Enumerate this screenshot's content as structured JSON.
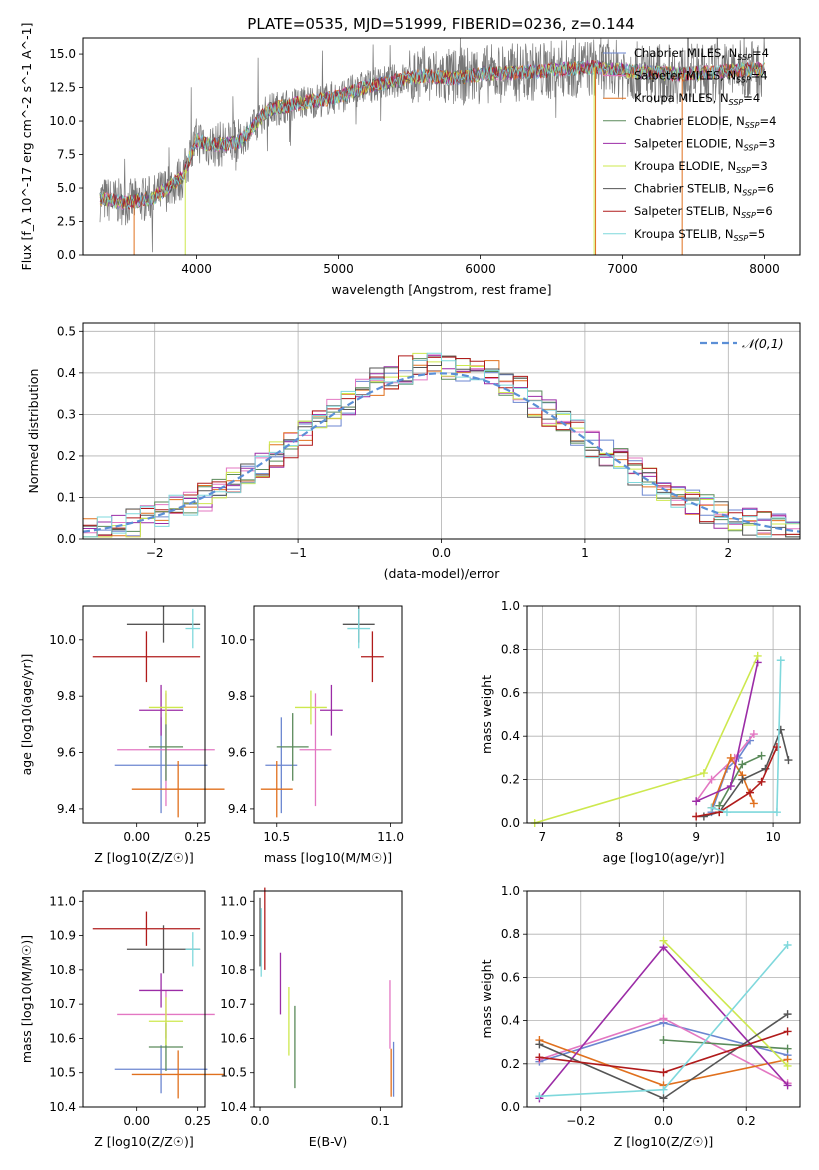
{
  "figure_title": "PLATE=0535, MJD=51999, FIBERID=0236, z=0.144",
  "colors": {
    "Chabrier MILES": "#6b86d0",
    "Salpeter MILES": "#e377c2",
    "Kroupa MILES": "#e0701e",
    "Chabrier ELODIE": "#5a8a5a",
    "Salpeter ELODIE": "#9b2ca6",
    "Kroupa ELODIE": "#cde84e",
    "Chabrier STELIB": "#555555",
    "Salpeter STELIB": "#b01b1b",
    "Kroupa STELIB": "#7fd8dc",
    "normal": "#5b8fd6"
  },
  "chart_data": [
    {
      "type": "line",
      "id": "spectrum",
      "title": "PLATE=0535, MJD=51999, FIBERID=0236, z=0.144",
      "xlabel": "wavelength [Angstrom, rest frame]",
      "ylabel": "Flux [f_λ 10^-17 erg cm^-2 s^-1 A^-1]",
      "xlim": [
        3200,
        8250
      ],
      "ylim": [
        0,
        16.2
      ],
      "xticks": [
        4000,
        5000,
        6000,
        7000,
        8000
      ],
      "yticks": [
        0.0,
        2.5,
        5.0,
        7.5,
        10.0,
        12.5,
        15.0
      ],
      "legend_position": "top-right",
      "data_envelope": {
        "x": [
          3320,
          3500,
          3700,
          3900,
          4000,
          4100,
          4300,
          4500,
          4700,
          5000,
          5200,
          5400,
          5600,
          5800,
          6000,
          6200,
          6400,
          6600,
          6800,
          7000,
          7200,
          7400,
          7600,
          7800,
          8000
        ],
        "y": [
          4.2,
          3.9,
          4.3,
          5.8,
          8.6,
          8.2,
          8.4,
          10.8,
          11.3,
          11.8,
          12.6,
          13.0,
          13.4,
          13.2,
          13.5,
          13.6,
          13.7,
          13.9,
          14.0,
          13.8,
          13.6,
          13.5,
          13.6,
          13.8,
          13.9
        ]
      },
      "legend": [
        {
          "label": "Chabrier MILES, N",
          "sub": "SSP",
          "suffix": "=4"
        },
        {
          "label": "Salpeter MILES, N",
          "sub": "SSP",
          "suffix": "=4"
        },
        {
          "label": "Kroupa MILES, N",
          "sub": "SSP",
          "suffix": "=4"
        },
        {
          "label": "Chabrier ELODIE, N",
          "sub": "SSP",
          "suffix": "=4"
        },
        {
          "label": "Salpeter ELODIE, N",
          "sub": "SSP",
          "suffix": "=3"
        },
        {
          "label": "Kroupa ELODIE, N",
          "sub": "SSP",
          "suffix": "=3"
        },
        {
          "label": "Chabrier STELIB, N",
          "sub": "SSP",
          "suffix": "=6"
        },
        {
          "label": "Salpeter STELIB, N",
          "sub": "SSP",
          "suffix": "=6"
        },
        {
          "label": "Kroupa STELIB, N",
          "sub": "SSP",
          "suffix": "=5"
        }
      ]
    },
    {
      "type": "histogram",
      "id": "residuals",
      "xlabel": "(data-model)/error",
      "ylabel": "Normed distribution",
      "xlim": [
        -2.5,
        2.5
      ],
      "ylim": [
        0,
        0.52
      ],
      "xticks": [
        -2,
        -1,
        0,
        1,
        2
      ],
      "yticks": [
        0.0,
        0.1,
        0.2,
        0.3,
        0.4,
        0.5
      ],
      "bin_width": 0.1,
      "grid": true,
      "legend": "𝒩(0,1)",
      "legend_position": "top-right",
      "reference_curve": "standard normal"
    },
    {
      "type": "errorbar",
      "id": "age_vs_Z",
      "xlabel": "Z [log10(Z/Z☉)]",
      "ylabel": "age [log10(age/yr)]",
      "xlim": [
        -0.22,
        0.28
      ],
      "ylim": [
        9.35,
        10.12
      ],
      "xticks": [
        0.0,
        0.25
      ],
      "yticks": [
        9.4,
        9.6,
        9.8,
        10.0
      ],
      "points": [
        {
          "model": "Chabrier MILES",
          "x": 0.1,
          "xerr": 0.19,
          "y": 9.555,
          "yerr": 0.17
        },
        {
          "model": "Salpeter MILES",
          "x": 0.12,
          "xerr": 0.2,
          "y": 9.61,
          "yerr": 0.2
        },
        {
          "model": "Kroupa MILES",
          "x": 0.17,
          "xerr": 0.19,
          "y": 9.47,
          "yerr": 0.1
        },
        {
          "model": "Chabrier ELODIE",
          "x": 0.12,
          "xerr": 0.07,
          "y": 9.62,
          "yerr": 0.12
        },
        {
          "model": "Salpeter ELODIE",
          "x": 0.1,
          "xerr": 0.09,
          "y": 9.75,
          "yerr": 0.09
        },
        {
          "model": "Kroupa ELODIE",
          "x": 0.12,
          "xerr": 0.07,
          "y": 9.76,
          "yerr": 0.06
        },
        {
          "model": "Chabrier STELIB",
          "x": 0.11,
          "xerr": 0.15,
          "y": 10.055,
          "yerr": 0.065
        },
        {
          "model": "Salpeter STELIB",
          "x": 0.04,
          "xerr": 0.22,
          "y": 9.94,
          "yerr": 0.09
        },
        {
          "model": "Kroupa STELIB",
          "x": 0.23,
          "xerr": 0.03,
          "y": 10.04,
          "yerr": 0.07
        }
      ]
    },
    {
      "type": "errorbar",
      "id": "age_vs_mass",
      "xlabel": "mass [log10(M/M☉)]",
      "ylabel": "",
      "xlim": [
        10.4,
        11.05
      ],
      "ylim": [
        9.35,
        10.12
      ],
      "xticks": [
        10.5,
        11.0
      ],
      "yticks": [
        9.4,
        9.6,
        9.8,
        10.0
      ],
      "points": [
        {
          "model": "Chabrier MILES",
          "x": 10.52,
          "xerr": 0.07,
          "y": 9.555,
          "yerr": 0.17
        },
        {
          "model": "Salpeter MILES",
          "x": 10.67,
          "xerr": 0.07,
          "y": 9.61,
          "yerr": 0.2
        },
        {
          "model": "Kroupa MILES",
          "x": 10.5,
          "xerr": 0.07,
          "y": 9.47,
          "yerr": 0.1
        },
        {
          "model": "Chabrier ELODIE",
          "x": 10.57,
          "xerr": 0.07,
          "y": 9.62,
          "yerr": 0.12
        },
        {
          "model": "Salpeter ELODIE",
          "x": 10.74,
          "xerr": 0.05,
          "y": 9.75,
          "yerr": 0.09
        },
        {
          "model": "Kroupa ELODIE",
          "x": 10.65,
          "xerr": 0.07,
          "y": 9.76,
          "yerr": 0.06
        },
        {
          "model": "Chabrier STELIB",
          "x": 10.86,
          "xerr": 0.07,
          "y": 10.055,
          "yerr": 0.065
        },
        {
          "model": "Salpeter STELIB",
          "x": 10.92,
          "xerr": 0.05,
          "y": 9.94,
          "yerr": 0.09
        },
        {
          "model": "Kroupa STELIB",
          "x": 10.86,
          "xerr": 0.05,
          "y": 10.04,
          "yerr": 0.07
        }
      ]
    },
    {
      "type": "line",
      "id": "weight_vs_age",
      "xlabel": "age  [log10(age/yr)]",
      "ylabel": "mass weight",
      "xlim": [
        6.8,
        10.35
      ],
      "ylim": [
        0,
        1.0
      ],
      "xticks": [
        7,
        8,
        9,
        10
      ],
      "yticks": [
        0.0,
        0.2,
        0.4,
        0.6,
        0.8,
        1.0
      ],
      "grid": true,
      "series": [
        {
          "model": "Chabrier MILES",
          "x": [
            9.2,
            9.4,
            9.55,
            9.7
          ],
          "y": [
            0.05,
            0.25,
            0.3,
            0.38
          ]
        },
        {
          "model": "Salpeter MILES",
          "x": [
            9.0,
            9.2,
            9.5,
            9.75
          ],
          "y": [
            0.1,
            0.2,
            0.3,
            0.41
          ]
        },
        {
          "model": "Kroupa MILES",
          "x": [
            9.2,
            9.45,
            9.6,
            9.75
          ],
          "y": [
            0.07,
            0.3,
            0.22,
            0.09
          ]
        },
        {
          "model": "Chabrier ELODIE",
          "x": [
            9.3,
            9.6,
            9.85
          ],
          "y": [
            0.08,
            0.27,
            0.31
          ]
        },
        {
          "model": "Salpeter ELODIE",
          "x": [
            9.0,
            9.45,
            9.8
          ],
          "y": [
            0.1,
            0.17,
            0.74
          ]
        },
        {
          "model": "Kroupa ELODIE",
          "x": [
            6.9,
            9.1,
            9.8
          ],
          "y": [
            0.0,
            0.23,
            0.77
          ]
        },
        {
          "model": "Chabrier STELIB",
          "x": [
            9.1,
            9.3,
            9.6,
            9.9,
            10.1,
            10.2
          ],
          "y": [
            0.03,
            0.05,
            0.2,
            0.25,
            0.43,
            0.29
          ]
        },
        {
          "model": "Salpeter STELIB",
          "x": [
            9.0,
            9.3,
            9.7,
            9.85,
            10.05
          ],
          "y": [
            0.03,
            0.05,
            0.14,
            0.19,
            0.35
          ]
        },
        {
          "model": "Kroupa STELIB",
          "x": [
            9.2,
            9.4,
            10.05,
            10.1
          ],
          "y": [
            0.07,
            0.05,
            0.05,
            0.75
          ]
        }
      ]
    },
    {
      "type": "errorbar",
      "id": "mass_vs_Z",
      "xlabel": "Z [log10(Z/Z☉)]",
      "ylabel": "mass [log10(M/M☉)]",
      "xlim": [
        -0.22,
        0.28
      ],
      "ylim": [
        10.4,
        11.03
      ],
      "xticks": [
        0.0,
        0.25
      ],
      "yticks": [
        10.4,
        10.5,
        10.6,
        10.7,
        10.8,
        10.9,
        11.0
      ],
      "points": [
        {
          "model": "Chabrier MILES",
          "x": 0.1,
          "xerr": 0.19,
          "y": 10.51,
          "yerr": 0.07
        },
        {
          "model": "Salpeter MILES",
          "x": 0.12,
          "xerr": 0.2,
          "y": 10.67,
          "yerr": 0.07
        },
        {
          "model": "Kroupa MILES",
          "x": 0.17,
          "xerr": 0.19,
          "y": 10.495,
          "yerr": 0.07
        },
        {
          "model": "Chabrier ELODIE",
          "x": 0.12,
          "xerr": 0.07,
          "y": 10.575,
          "yerr": 0.07
        },
        {
          "model": "Salpeter ELODIE",
          "x": 0.1,
          "xerr": 0.09,
          "y": 10.74,
          "yerr": 0.05
        },
        {
          "model": "Kroupa ELODIE",
          "x": 0.12,
          "xerr": 0.07,
          "y": 10.65,
          "yerr": 0.07
        },
        {
          "model": "Chabrier STELIB",
          "x": 0.11,
          "xerr": 0.15,
          "y": 10.86,
          "yerr": 0.07
        },
        {
          "model": "Salpeter STELIB",
          "x": 0.04,
          "xerr": 0.22,
          "y": 10.92,
          "yerr": 0.05
        },
        {
          "model": "Kroupa STELIB",
          "x": 0.23,
          "xerr": 0.03,
          "y": 10.86,
          "yerr": 0.05
        }
      ]
    },
    {
      "type": "errorbar",
      "id": "mass_vs_ebv",
      "xlabel": "E(B-V)",
      "ylabel": "",
      "xlim": [
        -0.005,
        0.118
      ],
      "ylim": [
        10.4,
        11.03
      ],
      "xticks": [
        0.0,
        0.1
      ],
      "yticks": [
        10.4,
        10.5,
        10.6,
        10.7,
        10.8,
        10.9,
        11.0
      ],
      "points": [
        {
          "model": "Chabrier MILES",
          "x": 0.111,
          "xerr": 0,
          "y": 10.51,
          "yerr": 0.08
        },
        {
          "model": "Salpeter MILES",
          "x": 0.108,
          "xerr": 0,
          "y": 10.67,
          "yerr": 0.1
        },
        {
          "model": "Kroupa MILES",
          "x": 0.109,
          "xerr": 0,
          "y": 10.5,
          "yerr": 0.07
        },
        {
          "model": "Chabrier ELODIE",
          "x": 0.029,
          "xerr": 0,
          "y": 10.575,
          "yerr": 0.12
        },
        {
          "model": "Salpeter ELODIE",
          "x": 0.017,
          "xerr": 0,
          "y": 10.76,
          "yerr": 0.09
        },
        {
          "model": "Kroupa ELODIE",
          "x": 0.024,
          "xerr": 0,
          "y": 10.65,
          "yerr": 0.1
        },
        {
          "model": "Chabrier STELIB",
          "x": 0.0,
          "xerr": 0,
          "y": 10.91,
          "yerr": 0.1
        },
        {
          "model": "Salpeter STELIB",
          "x": 0.004,
          "xerr": 0,
          "y": 10.92,
          "yerr": 0.12
        },
        {
          "model": "Kroupa STELIB",
          "x": 0.001,
          "xerr": 0,
          "y": 10.88,
          "yerr": 0.1
        }
      ]
    },
    {
      "type": "line",
      "id": "weight_vs_Z",
      "xlabel": "Z [log10(Z/Z☉)]",
      "ylabel": "mass weight",
      "xlim": [
        -0.33,
        0.33
      ],
      "ylim": [
        0,
        1.0
      ],
      "xticks": [
        -0.2,
        0.0,
        0.2
      ],
      "yticks": [
        0.0,
        0.2,
        0.4,
        0.6,
        0.8,
        1.0
      ],
      "grid": true,
      "series": [
        {
          "model": "Chabrier MILES",
          "x": [
            -0.3,
            0.0,
            0.3
          ],
          "y": [
            0.21,
            0.39,
            0.24
          ]
        },
        {
          "model": "Salpeter MILES",
          "x": [
            -0.3,
            0.0,
            0.3
          ],
          "y": [
            0.22,
            0.41,
            0.11
          ]
        },
        {
          "model": "Kroupa MILES",
          "x": [
            -0.3,
            0.0,
            0.3
          ],
          "y": [
            0.31,
            0.1,
            0.22
          ]
        },
        {
          "model": "Chabrier ELODIE",
          "x": [
            0.0,
            0.3
          ],
          "y": [
            0.31,
            0.27
          ]
        },
        {
          "model": "Salpeter ELODIE",
          "x": [
            -0.3,
            0.0,
            0.3
          ],
          "y": [
            0.04,
            0.74,
            0.1
          ]
        },
        {
          "model": "Kroupa ELODIE",
          "x": [
            0.0,
            0.3
          ],
          "y": [
            0.77,
            0.19
          ]
        },
        {
          "model": "Chabrier STELIB",
          "x": [
            -0.3,
            0.0,
            0.3
          ],
          "y": [
            0.29,
            0.04,
            0.43
          ]
        },
        {
          "model": "Salpeter STELIB",
          "x": [
            -0.3,
            0.0,
            0.3
          ],
          "y": [
            0.23,
            0.16,
            0.35
          ]
        },
        {
          "model": "Kroupa STELIB",
          "x": [
            -0.3,
            0.0,
            0.3
          ],
          "y": [
            0.05,
            0.08,
            0.75
          ]
        }
      ]
    }
  ]
}
